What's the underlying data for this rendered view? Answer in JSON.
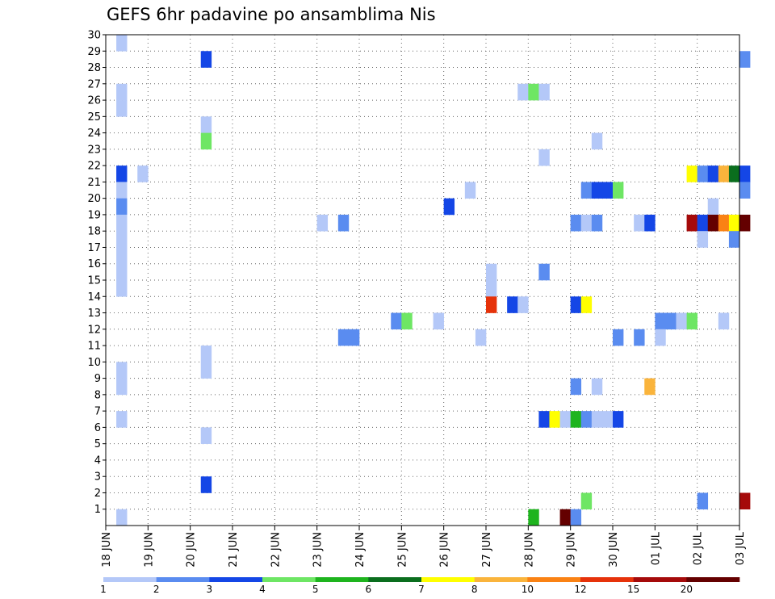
{
  "chart_data": {
    "type": "heatmap",
    "title": "GEFS 6hr padavine po ansamblima Nis",
    "y_categories": [
      "1",
      "2",
      "3",
      "4",
      "5",
      "6",
      "7",
      "8",
      "9",
      "10",
      "11",
      "12",
      "13",
      "14",
      "15",
      "16",
      "17",
      "18",
      "19",
      "20",
      "21",
      "22",
      "23",
      "24",
      "25",
      "26",
      "27",
      "28",
      "29",
      "30"
    ],
    "x_tick_labels": [
      "18 JUN",
      "19 JUN",
      "20 JUN",
      "21 JUN",
      "22 JUN",
      "23 JUN",
      "24 JUN",
      "25 JUN",
      "26 JUN",
      "27 JUN",
      "28 JUN",
      "29 JUN",
      "30 JUN",
      "01 JUL",
      "02 JUL",
      "03 JUL"
    ],
    "x_units": "6-hour steps from 18 JUN 00Z",
    "color_scale": {
      "levels": [
        "1",
        "2",
        "3",
        "4",
        "5",
        "6",
        "7",
        "8",
        "10",
        "12",
        "15",
        "20"
      ],
      "colors": [
        "#b4c8f8",
        "#5a8cf0",
        "#1446e6",
        "#6ee664",
        "#1eb41e",
        "#0a6e1e",
        "#ffff00",
        "#fab43c",
        "#fa8214",
        "#e6320a",
        "#a50a0a",
        "#640000"
      ]
    },
    "cells": [
      {
        "member": 30,
        "t": 1,
        "c": 0
      },
      {
        "member": 29,
        "t": 9,
        "c": 2
      },
      {
        "member": 29,
        "t": 60,
        "c": 1
      },
      {
        "member": 27,
        "t": 1,
        "c": 0
      },
      {
        "member": 26,
        "t": 1,
        "c": 0
      },
      {
        "member": 27,
        "t": 39,
        "c": 0
      },
      {
        "member": 27,
        "t": 40,
        "c": 3
      },
      {
        "member": 27,
        "t": 41,
        "c": 0
      },
      {
        "member": 25,
        "t": 9,
        "c": 0
      },
      {
        "member": 24,
        "t": 9,
        "c": 3
      },
      {
        "member": 24,
        "t": 46,
        "c": 0
      },
      {
        "member": 23,
        "t": 41,
        "c": 0
      },
      {
        "member": 22,
        "t": 55,
        "c": 6
      },
      {
        "member": 22,
        "t": 56,
        "c": 1
      },
      {
        "member": 22,
        "t": 57,
        "c": 2
      },
      {
        "member": 22,
        "t": 58,
        "c": 7
      },
      {
        "member": 22,
        "t": 59,
        "c": 5
      },
      {
        "member": 22,
        "t": 60,
        "c": 2
      },
      {
        "member": 22,
        "t": 1,
        "c": 2
      },
      {
        "member": 22,
        "t": 3,
        "c": 0
      },
      {
        "member": 21,
        "t": 45,
        "c": 1
      },
      {
        "member": 21,
        "t": 46,
        "c": 2
      },
      {
        "member": 21,
        "t": 47,
        "c": 2
      },
      {
        "member": 21,
        "t": 48,
        "c": 3
      },
      {
        "member": 21,
        "t": 1,
        "c": 0
      },
      {
        "member": 21,
        "t": 34,
        "c": 0
      },
      {
        "member": 21,
        "t": 60,
        "c": 1
      },
      {
        "member": 20,
        "t": 1,
        "c": 1
      },
      {
        "member": 20,
        "t": 32,
        "c": 2
      },
      {
        "member": 20,
        "t": 57,
        "c": 0
      },
      {
        "member": 19,
        "t": 1,
        "c": 0
      },
      {
        "member": 19,
        "t": 20,
        "c": 0
      },
      {
        "member": 19,
        "t": 22,
        "c": 1
      },
      {
        "member": 19,
        "t": 44,
        "c": 1
      },
      {
        "member": 19,
        "t": 45,
        "c": 0
      },
      {
        "member": 19,
        "t": 46,
        "c": 1
      },
      {
        "member": 19,
        "t": 50,
        "c": 0
      },
      {
        "member": 19,
        "t": 51,
        "c": 2
      },
      {
        "member": 19,
        "t": 55,
        "c": 10
      },
      {
        "member": 19,
        "t": 56,
        "c": 2
      },
      {
        "member": 19,
        "t": 57,
        "c": 11
      },
      {
        "member": 19,
        "t": 58,
        "c": 8
      },
      {
        "member": 19,
        "t": 59,
        "c": 6
      },
      {
        "member": 19,
        "t": 60,
        "c": 11
      },
      {
        "member": 18,
        "t": 1,
        "c": 0
      },
      {
        "member": 18,
        "t": 56,
        "c": 0
      },
      {
        "member": 18,
        "t": 59,
        "c": 1
      },
      {
        "member": 17,
        "t": 1,
        "c": 0
      },
      {
        "member": 16,
        "t": 1,
        "c": 0
      },
      {
        "member": 16,
        "t": 36,
        "c": 0
      },
      {
        "member": 16,
        "t": 41,
        "c": 1
      },
      {
        "member": 15,
        "t": 1,
        "c": 0
      },
      {
        "member": 15,
        "t": 36,
        "c": 0
      },
      {
        "member": 14,
        "t": 36,
        "c": 9
      },
      {
        "member": 14,
        "t": 38,
        "c": 2
      },
      {
        "member": 14,
        "t": 39,
        "c": 0
      },
      {
        "member": 14,
        "t": 44,
        "c": 2
      },
      {
        "member": 14,
        "t": 45,
        "c": 6
      },
      {
        "member": 13,
        "t": 27,
        "c": 1
      },
      {
        "member": 13,
        "t": 28,
        "c": 3
      },
      {
        "member": 13,
        "t": 31,
        "c": 0
      },
      {
        "member": 13,
        "t": 52,
        "c": 1
      },
      {
        "member": 13,
        "t": 53,
        "c": 1
      },
      {
        "member": 13,
        "t": 54,
        "c": 0
      },
      {
        "member": 13,
        "t": 55,
        "c": 3
      },
      {
        "member": 13,
        "t": 58,
        "c": 0
      },
      {
        "member": 12,
        "t": 22,
        "c": 1
      },
      {
        "member": 12,
        "t": 23,
        "c": 1
      },
      {
        "member": 12,
        "t": 35,
        "c": 0
      },
      {
        "member": 12,
        "t": 48,
        "c": 1
      },
      {
        "member": 12,
        "t": 50,
        "c": 1
      },
      {
        "member": 12,
        "t": 52,
        "c": 0
      },
      {
        "member": 11,
        "t": 9,
        "c": 0
      },
      {
        "member": 10,
        "t": 9,
        "c": 0
      },
      {
        "member": 10,
        "t": 1,
        "c": 0
      },
      {
        "member": 9,
        "t": 1,
        "c": 0
      },
      {
        "member": 9,
        "t": 44,
        "c": 1
      },
      {
        "member": 9,
        "t": 46,
        "c": 0
      },
      {
        "member": 9,
        "t": 51,
        "c": 7
      },
      {
        "member": 7,
        "t": 1,
        "c": 0
      },
      {
        "member": 7,
        "t": 41,
        "c": 2
      },
      {
        "member": 7,
        "t": 42,
        "c": 6
      },
      {
        "member": 7,
        "t": 43,
        "c": 0
      },
      {
        "member": 7,
        "t": 44,
        "c": 4
      },
      {
        "member": 7,
        "t": 45,
        "c": 1
      },
      {
        "member": 7,
        "t": 46,
        "c": 0
      },
      {
        "member": 7,
        "t": 47,
        "c": 0
      },
      {
        "member": 7,
        "t": 48,
        "c": 2
      },
      {
        "member": 6,
        "t": 9,
        "c": 0
      },
      {
        "member": 3,
        "t": 9,
        "c": 2
      },
      {
        "member": 2,
        "t": 45,
        "c": 3
      },
      {
        "member": 2,
        "t": 56,
        "c": 1
      },
      {
        "member": 2,
        "t": 60,
        "c": 10
      },
      {
        "member": 1,
        "t": 1,
        "c": 0
      },
      {
        "member": 1,
        "t": 40,
        "c": 4
      },
      {
        "member": 1,
        "t": 43,
        "c": 11
      },
      {
        "member": 1,
        "t": 44,
        "c": 1
      }
    ]
  }
}
